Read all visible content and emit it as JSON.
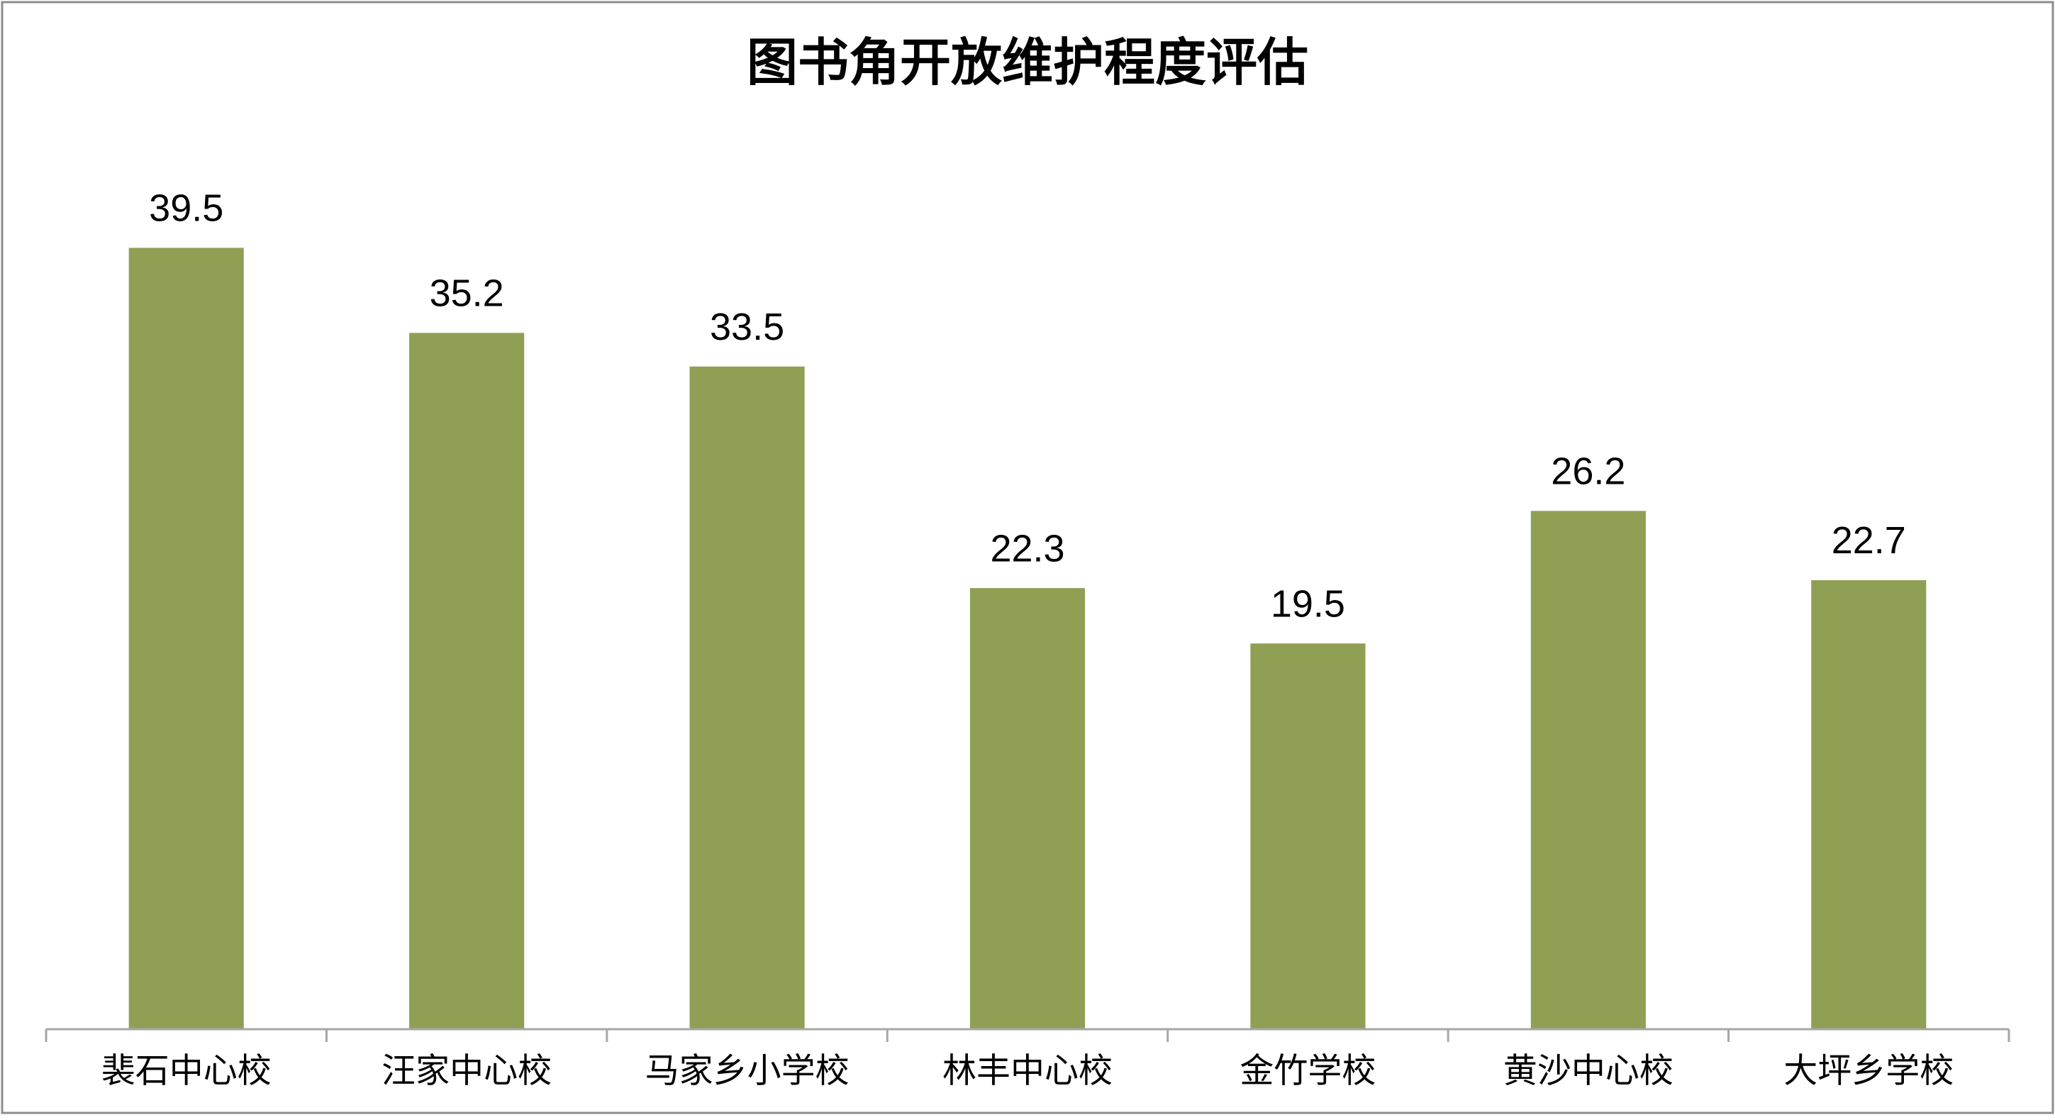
{
  "chart_data": {
    "type": "bar",
    "title": "图书角开放维护程度评估",
    "categories": [
      "裴石中心校",
      "汪家中心校",
      "马家乡小学校",
      "林丰中心校",
      "金竹学校",
      "黄沙中心校",
      "大坪乡学校"
    ],
    "values": [
      39.5,
      35.2,
      33.5,
      22.3,
      19.5,
      26.2,
      22.7
    ],
    "color": "#8fa055",
    "ylim": [
      0,
      45
    ]
  }
}
